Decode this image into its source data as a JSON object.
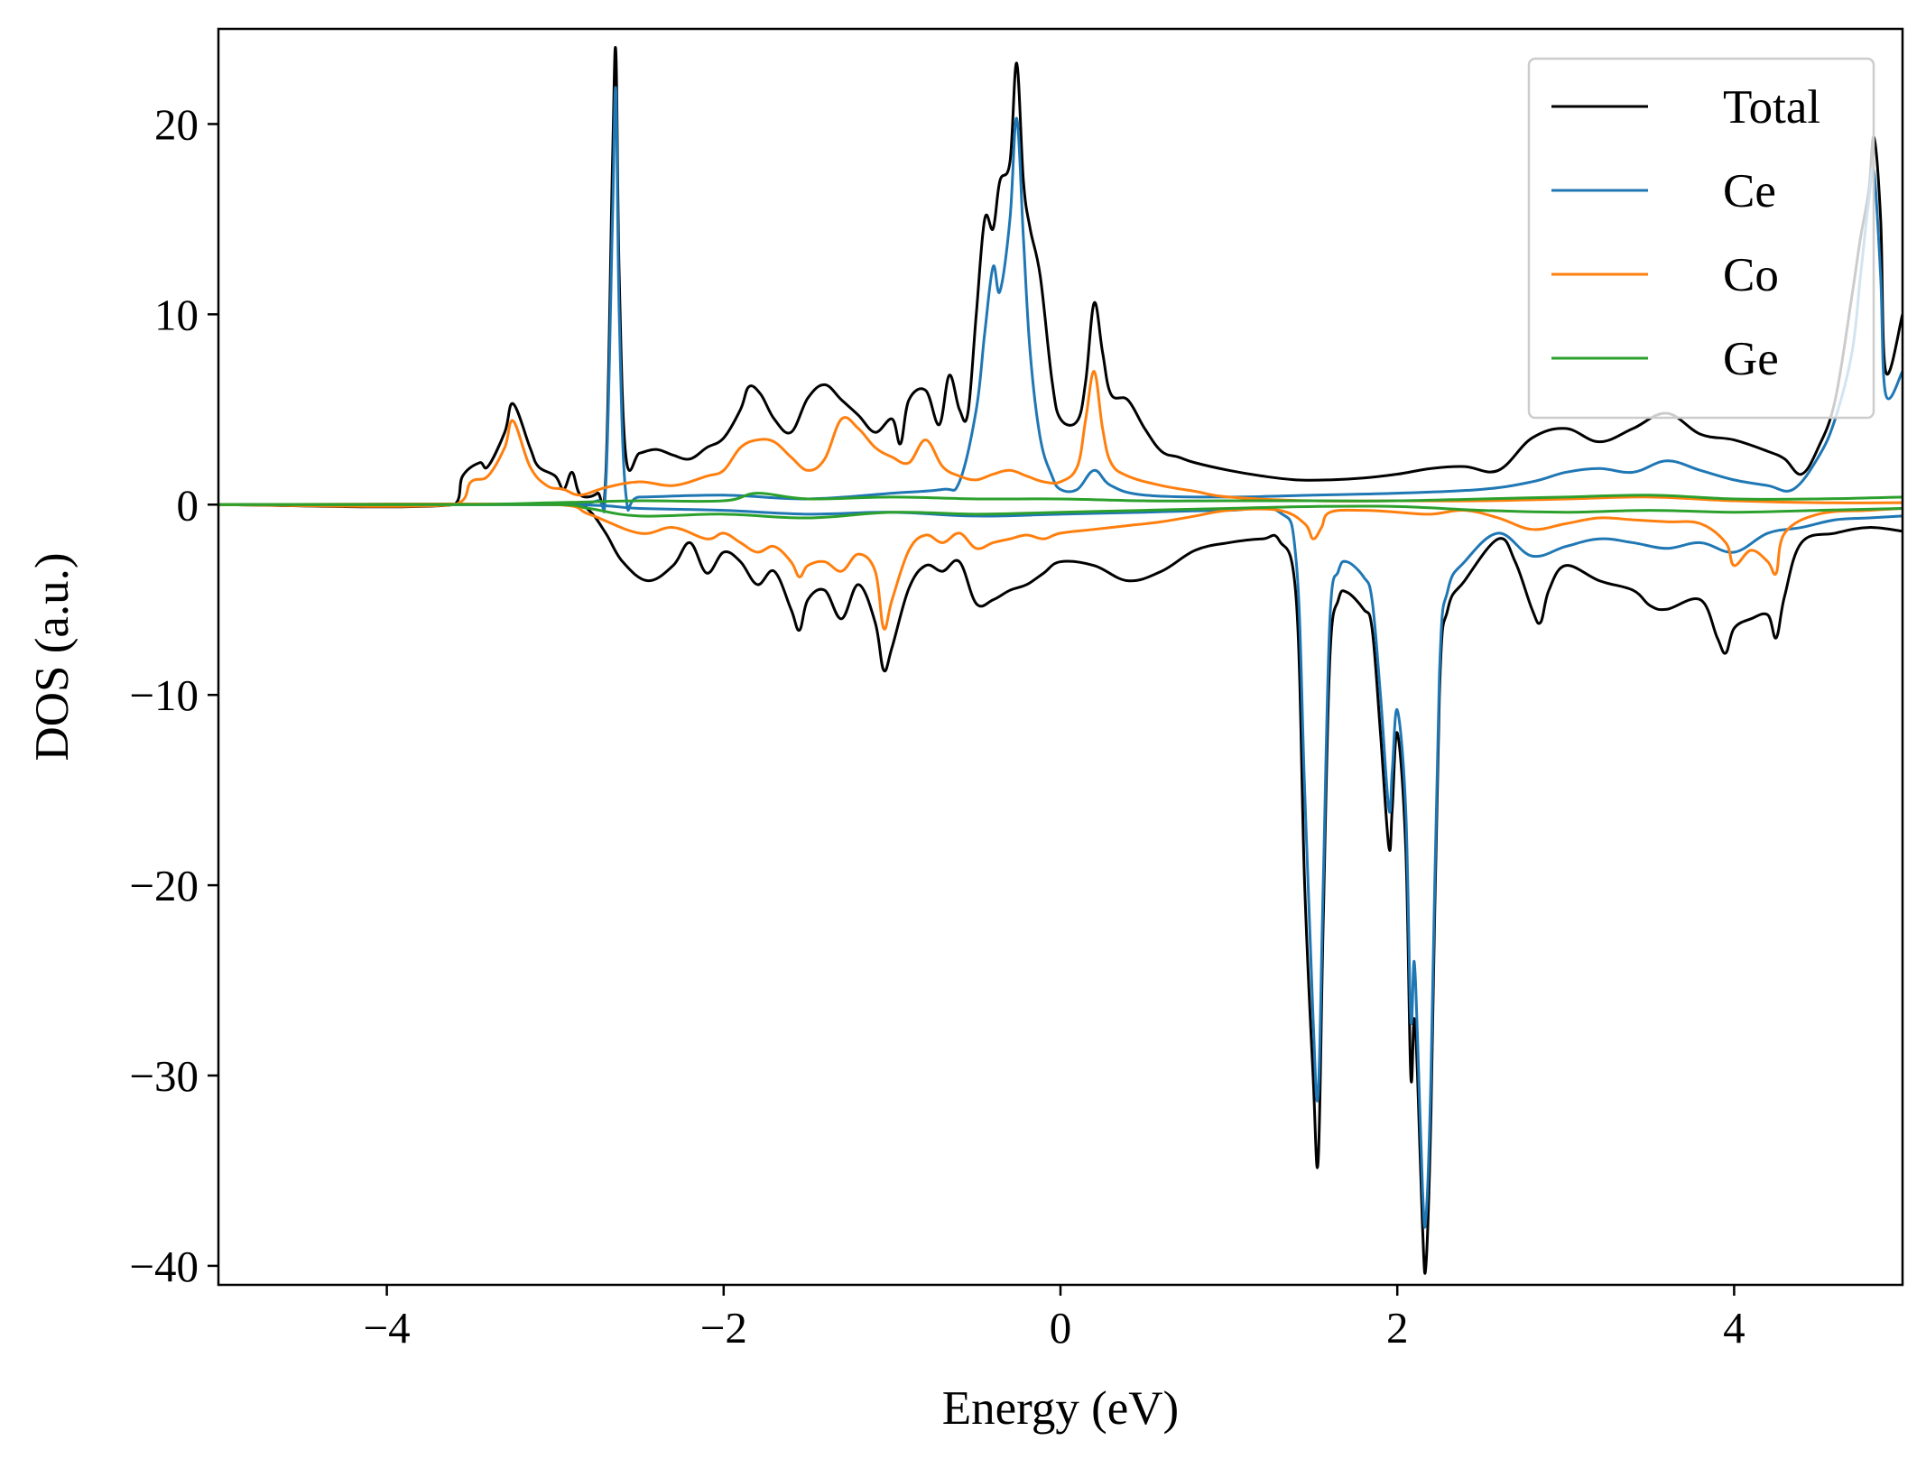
{
  "chart_data": {
    "type": "line",
    "title": "",
    "xlabel": "Energy (eV)",
    "ylabel": "DOS (a.u.)",
    "xlim": [
      -5,
      5
    ],
    "ylim": [
      -41,
      25
    ],
    "xticks": [
      -4,
      -2,
      0,
      2,
      4
    ],
    "xtick_labels": [
      "−4",
      "−2",
      "0",
      "2",
      "4"
    ],
    "yticks": [
      -40,
      -30,
      -20,
      -10,
      0,
      10,
      20
    ],
    "ytick_labels": [
      "−40",
      "−30",
      "−20",
      "−10",
      "0",
      "10",
      "20"
    ],
    "grid": false,
    "legend_position": "top-right",
    "series": [
      {
        "name": "Total",
        "color": "#000000",
        "spin_up": {
          "x": [
            -5,
            -3.6,
            -3.55,
            -3.45,
            -3.4,
            -3.3,
            -3.25,
            -3.15,
            -3.1,
            -3.0,
            -2.95,
            -2.9,
            -2.85,
            -2.75,
            -2.7,
            -2.66,
            -2.64,
            -2.62,
            -2.58,
            -2.5,
            -2.4,
            -2.3,
            -2.2,
            -2.1,
            -2.0,
            -1.9,
            -1.85,
            -1.78,
            -1.7,
            -1.6,
            -1.5,
            -1.4,
            -1.3,
            -1.2,
            -1.1,
            -1.0,
            -0.95,
            -0.9,
            -0.8,
            -0.72,
            -0.66,
            -0.6,
            -0.55,
            -0.5,
            -0.45,
            -0.4,
            -0.36,
            -0.3,
            -0.26,
            -0.22,
            -0.18,
            -0.12,
            -0.05,
            0.0,
            0.1,
            0.15,
            0.2,
            0.25,
            0.3,
            0.4,
            0.5,
            0.6,
            0.7,
            0.8,
            1.0,
            1.2,
            1.4,
            1.6,
            1.8,
            2.0,
            2.2,
            2.4,
            2.6,
            2.8,
            3.0,
            3.2,
            3.4,
            3.6,
            3.8,
            4.0,
            4.2,
            4.3,
            4.4,
            4.5,
            4.6,
            4.7,
            4.75,
            4.8,
            4.83,
            4.87,
            4.9,
            5.0
          ],
          "y": [
            0,
            0,
            1.5,
            2.2,
            2.0,
            3.8,
            5.3,
            3.0,
            2.0,
            1.5,
            0.8,
            1.7,
            0.5,
            0.6,
            1.5,
            18,
            23.8,
            12,
            2.5,
            2.7,
            2.9,
            2.6,
            2.4,
            3.0,
            3.5,
            5.0,
            6.2,
            5.8,
            4.5,
            3.8,
            5.6,
            6.3,
            5.5,
            4.7,
            3.8,
            4.5,
            3.2,
            5.5,
            6.0,
            4.2,
            6.8,
            5.0,
            4.8,
            10,
            15,
            14.5,
            17,
            18,
            23.2,
            17,
            14.5,
            12,
            6.5,
            4.5,
            4.4,
            6.5,
            10.6,
            8.0,
            5.8,
            5.5,
            4.0,
            2.8,
            2.5,
            2.2,
            1.8,
            1.5,
            1.3,
            1.3,
            1.4,
            1.6,
            1.9,
            2.0,
            1.8,
            3.5,
            4.0,
            3.3,
            4.0,
            4.8,
            3.7,
            3.4,
            2.8,
            2.4,
            1.6,
            3.0,
            5.5,
            11,
            14,
            16.5,
            19.3,
            15,
            7,
            10
          ]
        },
        "spin_down": {
          "x": [
            -5,
            -2.9,
            -2.8,
            -2.7,
            -2.6,
            -2.45,
            -2.3,
            -2.2,
            -2.1,
            -2.0,
            -1.9,
            -1.8,
            -1.7,
            -1.6,
            -1.55,
            -1.5,
            -1.4,
            -1.3,
            -1.2,
            -1.1,
            -1.05,
            -1.0,
            -0.9,
            -0.8,
            -0.7,
            -0.6,
            -0.5,
            -0.4,
            -0.3,
            -0.2,
            -0.1,
            0.0,
            0.2,
            0.4,
            0.6,
            0.8,
            1.0,
            1.2,
            1.3,
            1.4,
            1.45,
            1.5,
            1.53,
            1.56,
            1.6,
            1.65,
            1.7,
            1.8,
            1.85,
            1.9,
            1.95,
            1.97,
            2.0,
            2.05,
            2.08,
            2.1,
            2.12,
            2.15,
            2.17,
            2.2,
            2.25,
            2.3,
            2.4,
            2.6,
            2.7,
            2.8,
            2.85,
            2.9,
            3.0,
            3.2,
            3.4,
            3.5,
            3.6,
            3.8,
            3.9,
            3.95,
            4.0,
            4.1,
            4.2,
            4.25,
            4.3,
            4.4,
            4.6,
            4.8,
            5.0
          ],
          "y": [
            0,
            0,
            -0.3,
            -1.5,
            -3.0,
            -4.0,
            -3.2,
            -2.0,
            -3.6,
            -2.5,
            -3.0,
            -4.2,
            -3.5,
            -5.5,
            -6.6,
            -5.0,
            -4.5,
            -6.0,
            -4.2,
            -6.2,
            -8.7,
            -7.5,
            -4.4,
            -3.2,
            -3.5,
            -3.0,
            -5.2,
            -5.0,
            -4.5,
            -4.2,
            -3.6,
            -3.0,
            -3.2,
            -4.0,
            -3.5,
            -2.4,
            -2.0,
            -1.8,
            -1.9,
            -5,
            -20,
            -30,
            -34.5,
            -22,
            -8,
            -5.0,
            -4.6,
            -5.5,
            -6.5,
            -12,
            -18,
            -16,
            -12,
            -18,
            -30,
            -27,
            -30,
            -38,
            -40,
            -32,
            -10,
            -5.5,
            -4.0,
            -1.8,
            -3.0,
            -5.5,
            -6.2,
            -4.5,
            -3.2,
            -4.0,
            -4.5,
            -5.3,
            -5.5,
            -5.0,
            -7.0,
            -7.8,
            -6.5,
            -6.0,
            -5.8,
            -7.0,
            -4.8,
            -2.0,
            -1.5,
            -1.2,
            -1.4
          ]
        }
      },
      {
        "name": "Ce",
        "color": "#1f77b4",
        "spin_up": {
          "x": [
            -5,
            -3.6,
            -3.0,
            -2.75,
            -2.7,
            -2.66,
            -2.64,
            -2.62,
            -2.58,
            -2.5,
            -2.0,
            -1.5,
            -1.0,
            -0.7,
            -0.6,
            -0.5,
            -0.45,
            -0.4,
            -0.36,
            -0.3,
            -0.26,
            -0.22,
            -0.18,
            -0.12,
            -0.05,
            0.0,
            0.1,
            0.2,
            0.3,
            0.5,
            1.0,
            1.5,
            2.0,
            2.5,
            2.8,
            3.0,
            3.2,
            3.4,
            3.6,
            3.8,
            4.0,
            4.2,
            4.35,
            4.5,
            4.6,
            4.7,
            4.75,
            4.8,
            4.83,
            4.87,
            4.9,
            5.0
          ],
          "y": [
            0,
            0,
            0.05,
            0.2,
            1.0,
            15,
            21.8,
            10,
            0.5,
            0.4,
            0.5,
            0.3,
            0.6,
            0.8,
            1.2,
            5.0,
            9.0,
            12.5,
            11.2,
            15,
            20.3,
            14,
            8,
            3.5,
            1.5,
            0.8,
            0.8,
            1.8,
            1.0,
            0.5,
            0.4,
            0.5,
            0.6,
            0.8,
            1.2,
            1.7,
            1.9,
            1.7,
            2.3,
            1.8,
            1.3,
            1.0,
            0.8,
            2.5,
            4.5,
            8,
            12,
            16,
            17.5,
            12,
            5.8,
            7
          ]
        },
        "spin_down": {
          "x": [
            -5,
            -3.0,
            -2.5,
            -2.0,
            -1.5,
            -1.0,
            -0.5,
            0.0,
            0.5,
            1.0,
            1.3,
            1.4,
            1.45,
            1.5,
            1.53,
            1.56,
            1.6,
            1.65,
            1.7,
            1.8,
            1.85,
            1.9,
            1.95,
            1.97,
            2.0,
            2.05,
            2.08,
            2.1,
            2.12,
            2.15,
            2.17,
            2.2,
            2.25,
            2.3,
            2.4,
            2.6,
            2.8,
            3.0,
            3.2,
            3.4,
            3.6,
            3.8,
            4.0,
            4.2,
            4.4,
            4.6,
            4.8,
            5.0
          ],
          "y": [
            0,
            0,
            -0.2,
            -0.3,
            -0.5,
            -0.4,
            -0.6,
            -0.5,
            -0.4,
            -0.3,
            -0.4,
            -3,
            -15,
            -27,
            -31,
            -20,
            -6,
            -3.5,
            -3.0,
            -3.8,
            -5,
            -10,
            -16,
            -14,
            -10.8,
            -16,
            -27,
            -24,
            -28,
            -36,
            -37.5,
            -30,
            -9,
            -4.5,
            -3.0,
            -1.5,
            -2.7,
            -2.2,
            -1.8,
            -2.0,
            -2.3,
            -2.0,
            -2.5,
            -1.5,
            -1.2,
            -0.8,
            -0.7,
            -0.6
          ]
        }
      },
      {
        "name": "Co",
        "color": "#ff7f0e",
        "spin_up": {
          "x": [
            -5,
            -3.6,
            -3.5,
            -3.4,
            -3.3,
            -3.25,
            -3.15,
            -3.05,
            -2.95,
            -2.85,
            -2.7,
            -2.5,
            -2.3,
            -2.1,
            -2.0,
            -1.9,
            -1.8,
            -1.7,
            -1.6,
            -1.5,
            -1.4,
            -1.3,
            -1.2,
            -1.1,
            -1.0,
            -0.9,
            -0.8,
            -0.7,
            -0.6,
            -0.5,
            -0.4,
            -0.3,
            -0.2,
            -0.1,
            0.0,
            0.1,
            0.15,
            0.2,
            0.25,
            0.3,
            0.4,
            0.6,
            0.8,
            1.0,
            1.5,
            2.0,
            2.5,
            3.0,
            3.5,
            4.0,
            4.5,
            5.0
          ],
          "y": [
            0,
            0,
            1.2,
            1.5,
            3.0,
            4.4,
            2.0,
            1.0,
            0.8,
            0.5,
            0.9,
            1.2,
            1.0,
            1.5,
            1.8,
            3.0,
            3.4,
            3.3,
            2.5,
            1.8,
            2.4,
            4.5,
            4.0,
            3.0,
            2.5,
            2.2,
            3.4,
            2.0,
            1.5,
            1.3,
            1.6,
            1.8,
            1.5,
            1.2,
            1.2,
            2.0,
            4.5,
            7.0,
            4.0,
            2.2,
            1.5,
            1.0,
            0.7,
            0.4,
            0.2,
            0.2,
            0.2,
            0.3,
            0.4,
            0.2,
            0.1,
            0.1
          ]
        },
        "spin_down": {
          "x": [
            -5,
            -3.0,
            -2.8,
            -2.5,
            -2.3,
            -2.1,
            -2.0,
            -1.9,
            -1.8,
            -1.7,
            -1.6,
            -1.55,
            -1.5,
            -1.4,
            -1.3,
            -1.2,
            -1.1,
            -1.05,
            -1.0,
            -0.9,
            -0.8,
            -0.7,
            -0.6,
            -0.5,
            -0.4,
            -0.3,
            -0.2,
            -0.1,
            0.0,
            0.2,
            0.4,
            0.6,
            0.8,
            1.0,
            1.3,
            1.45,
            1.5,
            1.55,
            1.6,
            1.8,
            2.0,
            2.2,
            2.4,
            2.6,
            2.8,
            3.0,
            3.2,
            3.4,
            3.6,
            3.8,
            3.95,
            4.0,
            4.1,
            4.2,
            4.25,
            4.3,
            4.5,
            4.8,
            5.0
          ],
          "y": [
            0,
            0,
            -0.5,
            -1.5,
            -1.2,
            -1.8,
            -1.5,
            -2.0,
            -2.5,
            -2.2,
            -3.0,
            -3.8,
            -3.2,
            -3.0,
            -3.5,
            -2.6,
            -3.5,
            -6.5,
            -5.0,
            -2.4,
            -1.6,
            -2.0,
            -1.5,
            -2.3,
            -2.0,
            -1.8,
            -1.6,
            -1.8,
            -1.5,
            -1.3,
            -1.1,
            -0.9,
            -0.6,
            -0.3,
            -0.3,
            -1.0,
            -1.8,
            -1.2,
            -0.4,
            -0.3,
            -0.4,
            -0.5,
            -0.3,
            -0.7,
            -1.3,
            -1.0,
            -0.7,
            -0.8,
            -0.9,
            -1.0,
            -2.0,
            -3.2,
            -2.4,
            -3.0,
            -3.6,
            -1.5,
            -0.5,
            -0.3,
            -0.2
          ]
        }
      },
      {
        "name": "Ge",
        "color": "#2ca02c",
        "spin_up": {
          "x": [
            -5,
            -3.6,
            -3.0,
            -2.5,
            -2.0,
            -1.8,
            -1.5,
            -1.0,
            -0.5,
            0.0,
            0.5,
            1.0,
            1.5,
            2.0,
            2.5,
            3.0,
            3.5,
            4.0,
            4.5,
            5.0
          ],
          "y": [
            0,
            0,
            0.1,
            0.2,
            0.2,
            0.6,
            0.3,
            0.4,
            0.3,
            0.3,
            0.2,
            0.2,
            0.2,
            0.2,
            0.3,
            0.4,
            0.5,
            0.3,
            0.3,
            0.4
          ]
        },
        "spin_down": {
          "x": [
            -5,
            -3.0,
            -2.8,
            -2.5,
            -2.0,
            -1.5,
            -1.0,
            -0.5,
            0.0,
            0.5,
            1.0,
            1.5,
            2.0,
            2.5,
            3.0,
            3.5,
            4.0,
            4.5,
            5.0
          ],
          "y": [
            0,
            0,
            -0.2,
            -0.6,
            -0.5,
            -0.7,
            -0.4,
            -0.5,
            -0.4,
            -0.3,
            -0.2,
            -0.1,
            -0.1,
            -0.3,
            -0.4,
            -0.3,
            -0.4,
            -0.3,
            -0.2
          ]
        }
      }
    ]
  }
}
